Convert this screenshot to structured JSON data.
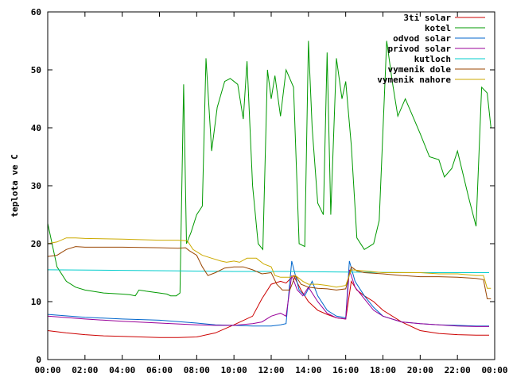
{
  "chart_data": {
    "type": "line",
    "title": "",
    "xlabel": "",
    "ylabel": "teplota ve C",
    "xlim": [
      0,
      24
    ],
    "ylim": [
      0,
      60
    ],
    "grid": false,
    "legend_position": "top-right",
    "x_ticks": [
      {
        "value": 0,
        "label": "00:00"
      },
      {
        "value": 2,
        "label": "02:00"
      },
      {
        "value": 4,
        "label": "04:00"
      },
      {
        "value": 6,
        "label": "06:00"
      },
      {
        "value": 8,
        "label": "08:00"
      },
      {
        "value": 10,
        "label": "10:00"
      },
      {
        "value": 12,
        "label": "12:00"
      },
      {
        "value": 14,
        "label": "14:00"
      },
      {
        "value": 16,
        "label": "16:00"
      },
      {
        "value": 18,
        "label": "18:00"
      },
      {
        "value": 20,
        "label": "20:00"
      },
      {
        "value": 22,
        "label": "22:00"
      },
      {
        "value": 24,
        "label": "00:00"
      }
    ],
    "y_ticks": [
      {
        "value": 0,
        "label": "0"
      },
      {
        "value": 10,
        "label": "10"
      },
      {
        "value": 20,
        "label": "20"
      },
      {
        "value": 30,
        "label": "30"
      },
      {
        "value": 40,
        "label": "40"
      },
      {
        "value": 50,
        "label": "50"
      },
      {
        "value": 60,
        "label": "60"
      }
    ],
    "series": [
      {
        "name": "3ti solar",
        "color": "#cc0000",
        "points": [
          [
            0,
            5.0
          ],
          [
            1,
            4.6
          ],
          [
            2,
            4.3
          ],
          [
            3,
            4.1
          ],
          [
            4,
            4.0
          ],
          [
            5,
            3.9
          ],
          [
            6,
            3.8
          ],
          [
            7,
            3.8
          ],
          [
            8,
            3.9
          ],
          [
            9,
            4.6
          ],
          [
            10,
            6.0
          ],
          [
            11,
            7.5
          ],
          [
            11.5,
            10.5
          ],
          [
            12,
            13.0
          ],
          [
            12.5,
            13.5
          ],
          [
            12.8,
            13.2
          ],
          [
            13.2,
            14.5
          ],
          [
            13.6,
            12.0
          ],
          [
            14,
            10.0
          ],
          [
            14.5,
            8.5
          ],
          [
            15,
            7.8
          ],
          [
            15.5,
            7.2
          ],
          [
            16,
            7.0
          ],
          [
            16.3,
            13.5
          ],
          [
            16.6,
            12.0
          ],
          [
            17,
            11.0
          ],
          [
            17.5,
            10.0
          ],
          [
            18,
            8.5
          ],
          [
            19,
            6.5
          ],
          [
            20,
            5.0
          ],
          [
            21,
            4.5
          ],
          [
            22,
            4.3
          ],
          [
            23,
            4.2
          ],
          [
            23.7,
            4.2
          ]
        ]
      },
      {
        "name": "kotel",
        "color": "#009900",
        "points": [
          [
            0,
            23.5
          ],
          [
            0.5,
            16.0
          ],
          [
            1,
            13.5
          ],
          [
            1.5,
            12.5
          ],
          [
            2,
            12.0
          ],
          [
            3,
            11.5
          ],
          [
            4,
            11.3
          ],
          [
            4.4,
            11.2
          ],
          [
            4.7,
            11.0
          ],
          [
            4.9,
            12.0
          ],
          [
            5.3,
            11.8
          ],
          [
            6,
            11.5
          ],
          [
            6.4,
            11.3
          ],
          [
            6.6,
            11.0
          ],
          [
            6.9,
            11.0
          ],
          [
            7.1,
            11.5
          ],
          [
            7.3,
            47.5
          ],
          [
            7.45,
            20.0
          ],
          [
            7.7,
            22.0
          ],
          [
            8.0,
            25.0
          ],
          [
            8.3,
            26.5
          ],
          [
            8.5,
            52.0
          ],
          [
            8.8,
            36.0
          ],
          [
            9.1,
            43.5
          ],
          [
            9.5,
            48.0
          ],
          [
            9.8,
            48.5
          ],
          [
            10.2,
            47.5
          ],
          [
            10.5,
            41.5
          ],
          [
            10.7,
            51.5
          ],
          [
            11.0,
            30.0
          ],
          [
            11.3,
            20.0
          ],
          [
            11.55,
            19.0
          ],
          [
            11.8,
            50.0
          ],
          [
            12.0,
            45.0
          ],
          [
            12.2,
            49.0
          ],
          [
            12.5,
            42.0
          ],
          [
            12.8,
            50.0
          ],
          [
            13.2,
            47.0
          ],
          [
            13.5,
            20.0
          ],
          [
            13.8,
            19.5
          ],
          [
            14.0,
            55.0
          ],
          [
            14.2,
            40.0
          ],
          [
            14.5,
            27.0
          ],
          [
            14.8,
            25.0
          ],
          [
            15.0,
            53.0
          ],
          [
            15.2,
            25.0
          ],
          [
            15.5,
            52.0
          ],
          [
            15.8,
            45.0
          ],
          [
            16.0,
            48.0
          ],
          [
            16.3,
            37.0
          ],
          [
            16.6,
            21.0
          ],
          [
            17.0,
            19.0
          ],
          [
            17.5,
            20.0
          ],
          [
            17.8,
            24.0
          ],
          [
            18.2,
            55.0
          ],
          [
            18.5,
            48.0
          ],
          [
            18.8,
            42.0
          ],
          [
            19.2,
            45.0
          ],
          [
            19.6,
            42.0
          ],
          [
            20.0,
            39.0
          ],
          [
            20.5,
            35.0
          ],
          [
            21.0,
            34.5
          ],
          [
            21.3,
            31.5
          ],
          [
            21.7,
            33.0
          ],
          [
            22.0,
            36.0
          ],
          [
            22.3,
            32.0
          ],
          [
            22.6,
            28.0
          ],
          [
            23.0,
            23.0
          ],
          [
            23.3,
            47.0
          ],
          [
            23.6,
            46.0
          ],
          [
            23.8,
            40.0
          ]
        ]
      },
      {
        "name": "odvod solar",
        "color": "#0066cc",
        "points": [
          [
            0,
            7.8
          ],
          [
            2,
            7.3
          ],
          [
            4,
            7.0
          ],
          [
            6,
            6.8
          ],
          [
            8,
            6.3
          ],
          [
            9,
            6.0
          ],
          [
            10,
            5.9
          ],
          [
            11,
            5.8
          ],
          [
            12,
            5.8
          ],
          [
            12.5,
            6.0
          ],
          [
            12.8,
            6.2
          ],
          [
            13.1,
            17.0
          ],
          [
            13.5,
            12.0
          ],
          [
            13.8,
            11.0
          ],
          [
            14.2,
            13.5
          ],
          [
            14.5,
            11.0
          ],
          [
            15,
            8.5
          ],
          [
            15.5,
            7.5
          ],
          [
            16,
            7.2
          ],
          [
            16.2,
            17.0
          ],
          [
            16.5,
            13.5
          ],
          [
            17,
            11.0
          ],
          [
            17.5,
            9.0
          ],
          [
            18,
            7.5
          ],
          [
            19,
            6.5
          ],
          [
            20,
            6.2
          ],
          [
            21,
            6.0
          ],
          [
            22,
            5.9
          ],
          [
            23,
            5.8
          ],
          [
            23.7,
            5.8
          ]
        ]
      },
      {
        "name": "privod solar",
        "color": "#990099",
        "points": [
          [
            0,
            7.5
          ],
          [
            2,
            7.0
          ],
          [
            4,
            6.6
          ],
          [
            6,
            6.3
          ],
          [
            8,
            6.0
          ],
          [
            9,
            5.9
          ],
          [
            10,
            5.9
          ],
          [
            11,
            6.2
          ],
          [
            11.5,
            6.5
          ],
          [
            12,
            7.5
          ],
          [
            12.5,
            8.0
          ],
          [
            12.8,
            7.5
          ],
          [
            13.1,
            14.5
          ],
          [
            13.4,
            12.0
          ],
          [
            13.7,
            11.0
          ],
          [
            14.0,
            12.5
          ],
          [
            14.5,
            10.0
          ],
          [
            15,
            8.0
          ],
          [
            15.5,
            7.2
          ],
          [
            16,
            7.0
          ],
          [
            16.2,
            15.5
          ],
          [
            16.5,
            12.5
          ],
          [
            17,
            10.5
          ],
          [
            17.5,
            8.5
          ],
          [
            18,
            7.5
          ],
          [
            19,
            6.5
          ],
          [
            20,
            6.2
          ],
          [
            21,
            6.0
          ],
          [
            22,
            5.8
          ],
          [
            23,
            5.7
          ],
          [
            23.7,
            5.7
          ]
        ]
      },
      {
        "name": "kutloch",
        "color": "#00cccc",
        "points": [
          [
            0,
            15.5
          ],
          [
            4,
            15.4
          ],
          [
            7,
            15.3
          ],
          [
            10,
            15.2
          ],
          [
            13,
            15.2
          ],
          [
            16,
            15.1
          ],
          [
            20,
            15.0
          ],
          [
            23.7,
            15.0
          ]
        ]
      },
      {
        "name": "vymenik dole",
        "color": "#994400",
        "points": [
          [
            0,
            17.8
          ],
          [
            0.5,
            18.0
          ],
          [
            1,
            19.0
          ],
          [
            1.5,
            19.5
          ],
          [
            2,
            19.4
          ],
          [
            4,
            19.4
          ],
          [
            6,
            19.3
          ],
          [
            7,
            19.2
          ],
          [
            7.4,
            19.3
          ],
          [
            7.6,
            18.8
          ],
          [
            8.0,
            18.0
          ],
          [
            8.3,
            16.0
          ],
          [
            8.6,
            14.5
          ],
          [
            9,
            15.0
          ],
          [
            9.5,
            15.8
          ],
          [
            10,
            16.0
          ],
          [
            10.5,
            16.0
          ],
          [
            11,
            15.5
          ],
          [
            11.5,
            14.8
          ],
          [
            12.0,
            15.0
          ],
          [
            12.3,
            13.0
          ],
          [
            12.6,
            12.0
          ],
          [
            13,
            12.0
          ],
          [
            13.3,
            14.5
          ],
          [
            13.6,
            13.0
          ],
          [
            14,
            12.5
          ],
          [
            14.5,
            12.3
          ],
          [
            15,
            12.2
          ],
          [
            15.5,
            12.0
          ],
          [
            16,
            12.2
          ],
          [
            16.3,
            16.0
          ],
          [
            16.6,
            15.3
          ],
          [
            17,
            15.0
          ],
          [
            18,
            14.8
          ],
          [
            19,
            14.5
          ],
          [
            20,
            14.3
          ],
          [
            21,
            14.3
          ],
          [
            22,
            14.2
          ],
          [
            23,
            14.0
          ],
          [
            23.4,
            13.8
          ],
          [
            23.6,
            10.5
          ],
          [
            23.8,
            10.5
          ]
        ]
      },
      {
        "name": "vymenik nahore",
        "color": "#ccaa00",
        "points": [
          [
            0,
            20.0
          ],
          [
            0.5,
            20.3
          ],
          [
            1,
            21.0
          ],
          [
            1.5,
            21.0
          ],
          [
            2,
            20.9
          ],
          [
            4,
            20.8
          ],
          [
            6,
            20.6
          ],
          [
            7,
            20.6
          ],
          [
            7.5,
            20.5
          ],
          [
            7.8,
            19.0
          ],
          [
            8.3,
            18.0
          ],
          [
            8.8,
            17.5
          ],
          [
            9.3,
            17.0
          ],
          [
            9.6,
            16.8
          ],
          [
            10,
            17.0
          ],
          [
            10.3,
            16.8
          ],
          [
            10.7,
            17.5
          ],
          [
            11.2,
            17.5
          ],
          [
            11.6,
            16.5
          ],
          [
            12.0,
            16.0
          ],
          [
            12.2,
            14.5
          ],
          [
            12.5,
            14.2
          ],
          [
            13,
            14.2
          ],
          [
            13.3,
            14.5
          ],
          [
            13.7,
            13.5
          ],
          [
            14.0,
            13.0
          ],
          [
            14.5,
            13.0
          ],
          [
            15,
            12.8
          ],
          [
            15.5,
            12.5
          ],
          [
            16,
            12.8
          ],
          [
            16.3,
            15.5
          ],
          [
            17,
            15.3
          ],
          [
            18,
            15.0
          ],
          [
            19,
            15.0
          ],
          [
            20,
            15.0
          ],
          [
            21,
            14.8
          ],
          [
            22,
            14.8
          ],
          [
            23,
            14.5
          ],
          [
            23.4,
            14.5
          ],
          [
            23.6,
            12.3
          ],
          [
            23.8,
            12.3
          ]
        ]
      }
    ]
  }
}
